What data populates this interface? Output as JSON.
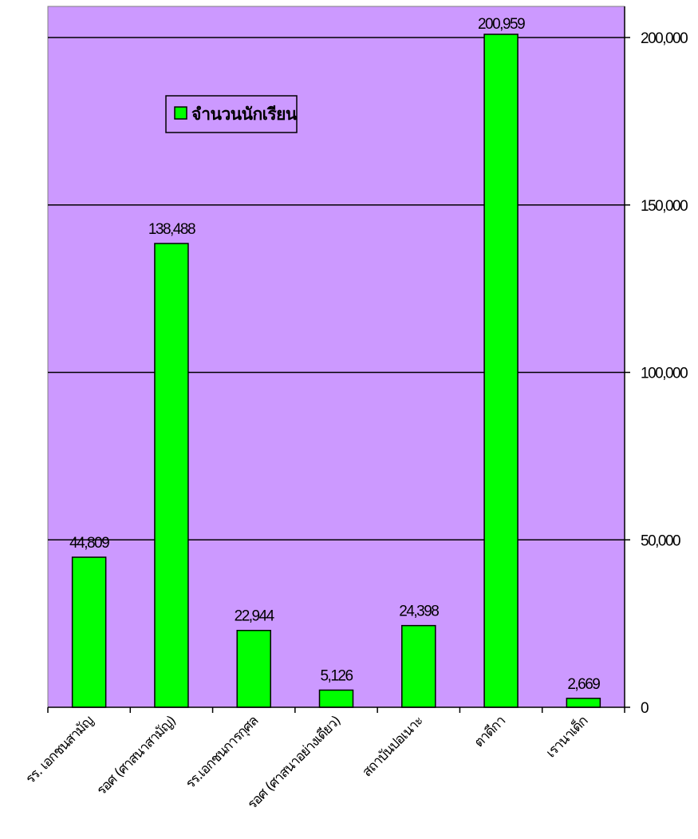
{
  "chart_data": {
    "type": "bar",
    "categories": [
      "รร. เอกชนสามัญ",
      "รอศ (ศาสนาสามัญ)",
      "รร.เอกชนการกุศล",
      "รอศ (ศาสนาอย่างเดียว)",
      "สถาบันปอเนาะ",
      "ตาดีกา",
      "เรานาเด็ก"
    ],
    "series": [
      {
        "name": "จำนวนนักเรียน",
        "values": [
          44809,
          138488,
          22944,
          5126,
          24398,
          200959,
          2669
        ],
        "labels": [
          "44,809",
          "138,488",
          "22,944",
          "5,126",
          "24,398",
          "200,959",
          "2,669"
        ]
      }
    ],
    "ylim": [
      0,
      200000
    ],
    "yticks": [
      0,
      50000,
      100000,
      150000,
      200000
    ],
    "ytick_labels": [
      "0",
      "50,000",
      "100,000",
      "150,000",
      "200,000"
    ],
    "grid": true,
    "y_axis_side": "right",
    "legend_position": "top-left",
    "colors": {
      "plot_background": "#cc99ff",
      "bar_fill": "#00ff00",
      "bar_stroke": "#000000",
      "gridline": "#000000"
    }
  }
}
